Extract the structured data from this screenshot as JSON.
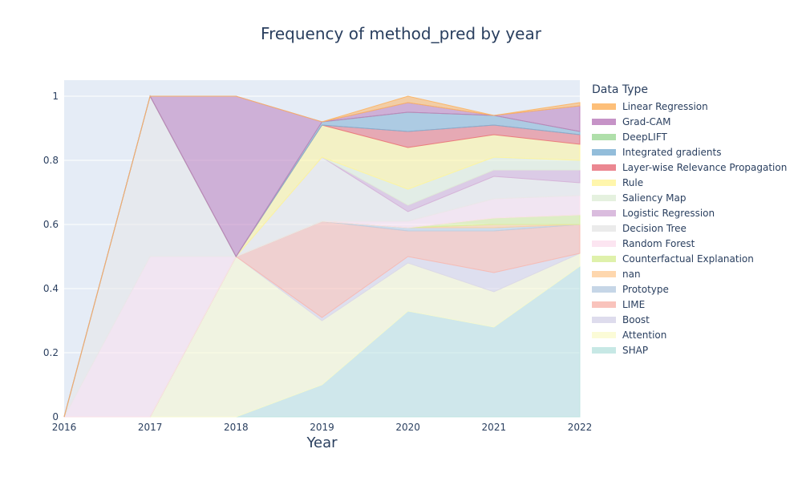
{
  "chart_data": {
    "type": "area",
    "title": "Frequency of method_pred by year",
    "xlabel": "Year",
    "ylabel": "",
    "legend_title": "Data Type",
    "legend_position": "right",
    "grid": true,
    "xlim": [
      2016,
      2022
    ],
    "ylim": [
      0,
      1.05
    ],
    "x": [
      2016,
      2017,
      2018,
      2019,
      2020,
      2021,
      2022
    ],
    "x_ticks": [
      "2016",
      "2017",
      "2018",
      "2019",
      "2020",
      "2021",
      "2022"
    ],
    "y_ticks": [
      "0",
      "0.2",
      "0.4",
      "0.6",
      "0.8",
      "1"
    ],
    "stack_order": [
      "SHAP",
      "Attention",
      "Boost",
      "LIME",
      "Prototype",
      "nan",
      "Counterfactual Explanation",
      "Random Forest",
      "Decision Tree",
      "Logistic Regression",
      "Saliency Map",
      "Rule",
      "Layer-wise Relevance Propagation",
      "Integrated gradients",
      "DeepLIFT",
      "Grad-CAM",
      "Linear Regression"
    ],
    "series": [
      {
        "name": "Linear Regression",
        "color": "#fdb462",
        "values": [
          0,
          0,
          0,
          0,
          0.02,
          0,
          0.01
        ]
      },
      {
        "name": "Grad-CAM",
        "color": "#bc80bd",
        "values": [
          0,
          0,
          0.5,
          0,
          0.03,
          0,
          0.08
        ]
      },
      {
        "name": "DeepLIFT",
        "color": "#a1d99b",
        "values": [
          0,
          0,
          0,
          0,
          0,
          0,
          0
        ]
      },
      {
        "name": "Integrated gradients",
        "color": "#80b1d3",
        "values": [
          0,
          0,
          0,
          0.01,
          0.06,
          0.03,
          0.01
        ]
      },
      {
        "name": "Layer-wise Relevance Propagation",
        "color": "#e8727e",
        "values": [
          0,
          0,
          0,
          0,
          0.05,
          0.03,
          0.03
        ]
      },
      {
        "name": "Rule",
        "color": "#fff59d",
        "values": [
          0,
          0,
          0,
          0.1,
          0.13,
          0.07,
          0.05
        ]
      },
      {
        "name": "Saliency Map",
        "color": "#e0efd9",
        "values": [
          0,
          0,
          0,
          0,
          0.05,
          0.04,
          0.03
        ]
      },
      {
        "name": "Logistic Regression",
        "color": "#d4b0d8",
        "values": [
          0,
          0,
          0,
          0,
          0.02,
          0.02,
          0.04
        ]
      },
      {
        "name": "Decision Tree",
        "color": "#e8e8e8",
        "values": [
          0,
          0.5,
          0,
          0.2,
          0.03,
          0.07,
          0.04
        ]
      },
      {
        "name": "Random Forest",
        "color": "#fbe0ee",
        "values": [
          0,
          0.5,
          0,
          0,
          0.02,
          0.06,
          0.06
        ]
      },
      {
        "name": "Counterfactual Explanation",
        "color": "#d9ef9c",
        "values": [
          0,
          0,
          0,
          0,
          0,
          0.02,
          0.03
        ]
      },
      {
        "name": "nan",
        "color": "#fed0a0",
        "values": [
          0,
          0,
          0,
          0,
          0,
          0.01,
          0
        ]
      },
      {
        "name": "Prototype",
        "color": "#bccfe3",
        "values": [
          0,
          0,
          0,
          0,
          0.01,
          0.01,
          0
        ]
      },
      {
        "name": "LIME",
        "color": "#f8b9b0",
        "values": [
          0,
          0,
          0,
          0.3,
          0.08,
          0.13,
          0.09
        ]
      },
      {
        "name": "Boost",
        "color": "#d8d6ea",
        "values": [
          0,
          0,
          0,
          0.01,
          0.02,
          0.06,
          0
        ]
      },
      {
        "name": "Attention",
        "color": "#fafad0",
        "values": [
          0,
          0,
          0.5,
          0.2,
          0.15,
          0.11,
          0.04
        ]
      },
      {
        "name": "SHAP",
        "color": "#bde4e1",
        "values": [
          0,
          0,
          0,
          0.1,
          0.33,
          0.28,
          0.47
        ]
      }
    ]
  }
}
